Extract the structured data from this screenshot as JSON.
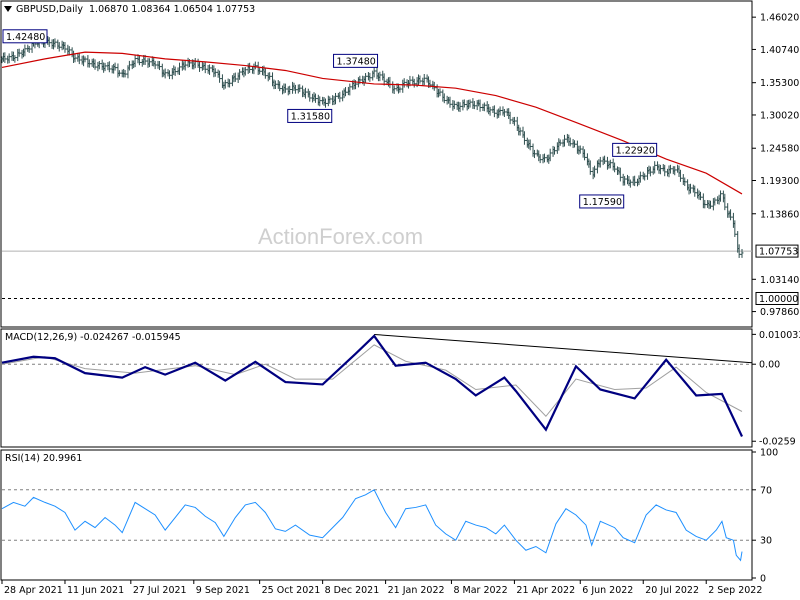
{
  "header": {
    "symbol": "GBPUSD,Daily",
    "ohlc": "1.06870 1.08364 1.06504 1.07753"
  },
  "watermark": "ActionForex.com",
  "colors": {
    "candle": "#2f4f4f",
    "ma": "#cc0000",
    "macd": "#000080",
    "signal": "#a0a0a0",
    "rsi": "#1e90ff",
    "label_box_border": "#000080"
  },
  "chart_data": [
    {
      "type": "line",
      "panel": "price",
      "title": "GBPUSD,Daily 1.06870 1.08364 1.06504 1.07753",
      "y_ticks": [
        "1.46020",
        "1.40740",
        "1.35300",
        "1.30020",
        "1.24580",
        "1.19300",
        "1.13860",
        "1.03140",
        "0.97860"
      ],
      "ylim": [
        0.955,
        1.485
      ],
      "current_price": "1.07753",
      "reference_level": "1.00000",
      "annotations": [
        {
          "label": "1.42480",
          "x": "2021-05-20",
          "y": 1.4248
        },
        {
          "label": "1.37480",
          "x": "2021-12-31",
          "y": 1.3748
        },
        {
          "label": "1.31580",
          "x": "2021-11-29",
          "y": 1.3158
        },
        {
          "label": "1.22920",
          "x": "2022-07-14",
          "y": 1.2292
        },
        {
          "label": "1.17590",
          "x": "2022-06-14",
          "y": 1.1759
        }
      ],
      "x_labels": [
        "28 Apr 2021",
        "11 Jun 2021",
        "27 Jul 2021",
        "9 Sep 2021",
        "25 Oct 2021",
        "8 Dec 2021",
        "21 Jan 2022",
        "8 Mar 2022",
        "21 Apr 2022",
        "6 Jun 2022",
        "20 Jul 2022",
        "2 Sep 2022"
      ],
      "series": [
        {
          "name": "Close",
          "points": [
            [
              "2021-04-28",
              1.392
            ],
            [
              "2021-05-06",
              1.395
            ],
            [
              "2021-05-14",
              1.405
            ],
            [
              "2021-05-20",
              1.418
            ],
            [
              "2021-05-28",
              1.42
            ],
            [
              "2021-06-04",
              1.416
            ],
            [
              "2021-06-11",
              1.411
            ],
            [
              "2021-06-18",
              1.393
            ],
            [
              "2021-06-25",
              1.389
            ],
            [
              "2021-07-02",
              1.382
            ],
            [
              "2021-07-09",
              1.379
            ],
            [
              "2021-07-16",
              1.376
            ],
            [
              "2021-07-21",
              1.365
            ],
            [
              "2021-07-30",
              1.39
            ],
            [
              "2021-08-06",
              1.388
            ],
            [
              "2021-08-13",
              1.385
            ],
            [
              "2021-08-20",
              1.366
            ],
            [
              "2021-08-27",
              1.372
            ],
            [
              "2021-09-03",
              1.384
            ],
            [
              "2021-09-10",
              1.384
            ],
            [
              "2021-09-17",
              1.377
            ],
            [
              "2021-09-24",
              1.371
            ],
            [
              "2021-09-30",
              1.348
            ],
            [
              "2021-10-08",
              1.362
            ],
            [
              "2021-10-15",
              1.374
            ],
            [
              "2021-10-22",
              1.378
            ],
            [
              "2021-10-29",
              1.368
            ],
            [
              "2021-11-05",
              1.349
            ],
            [
              "2021-11-12",
              1.341
            ],
            [
              "2021-11-19",
              1.345
            ],
            [
              "2021-11-29",
              1.331
            ],
            [
              "2021-12-08",
              1.321
            ],
            [
              "2021-12-15",
              1.325
            ],
            [
              "2021-12-22",
              1.334
            ],
            [
              "2021-12-31",
              1.353
            ],
            [
              "2022-01-07",
              1.36
            ],
            [
              "2022-01-13",
              1.369
            ],
            [
              "2022-01-21",
              1.357
            ],
            [
              "2022-01-28",
              1.34
            ],
            [
              "2022-02-04",
              1.353
            ],
            [
              "2022-02-11",
              1.355
            ],
            [
              "2022-02-18",
              1.359
            ],
            [
              "2022-02-25",
              1.341
            ],
            [
              "2022-03-04",
              1.325
            ],
            [
              "2022-03-11",
              1.313
            ],
            [
              "2022-03-18",
              1.318
            ],
            [
              "2022-03-25",
              1.318
            ],
            [
              "2022-04-01",
              1.312
            ],
            [
              "2022-04-08",
              1.303
            ],
            [
              "2022-04-14",
              1.307
            ],
            [
              "2022-04-22",
              1.284
            ],
            [
              "2022-04-29",
              1.257
            ],
            [
              "2022-05-06",
              1.234
            ],
            [
              "2022-05-13",
              1.226
            ],
            [
              "2022-05-20",
              1.248
            ],
            [
              "2022-05-27",
              1.262
            ],
            [
              "2022-06-03",
              1.248
            ],
            [
              "2022-06-10",
              1.232
            ],
            [
              "2022-06-14",
              1.201
            ],
            [
              "2022-06-20",
              1.227
            ],
            [
              "2022-06-30",
              1.215
            ],
            [
              "2022-07-06",
              1.193
            ],
            [
              "2022-07-14",
              1.19
            ],
            [
              "2022-07-22",
              1.205
            ],
            [
              "2022-07-29",
              1.216
            ],
            [
              "2022-08-05",
              1.207
            ],
            [
              "2022-08-12",
              1.213
            ],
            [
              "2022-08-19",
              1.183
            ],
            [
              "2022-08-26",
              1.174
            ],
            [
              "2022-09-02",
              1.151
            ],
            [
              "2022-09-09",
              1.159
            ],
            [
              "2022-09-13",
              1.172
            ],
            [
              "2022-09-16",
              1.143
            ],
            [
              "2022-09-21",
              1.126
            ],
            [
              "2022-09-23",
              1.083
            ],
            [
              "2022-09-26",
              1.069
            ],
            [
              "2022-09-27",
              1.0775
            ]
          ]
        },
        {
          "name": "Moving Average",
          "points": [
            [
              "2021-04-28",
              1.378
            ],
            [
              "2021-05-28",
              1.392
            ],
            [
              "2021-06-25",
              1.403
            ],
            [
              "2021-07-21",
              1.401
            ],
            [
              "2021-08-20",
              1.392
            ],
            [
              "2021-09-17",
              1.387
            ],
            [
              "2021-10-15",
              1.381
            ],
            [
              "2021-11-12",
              1.373
            ],
            [
              "2021-12-08",
              1.36
            ],
            [
              "2022-01-13",
              1.351
            ],
            [
              "2022-02-11",
              1.349
            ],
            [
              "2022-03-11",
              1.344
            ],
            [
              "2022-04-08",
              1.332
            ],
            [
              "2022-05-06",
              1.313
            ],
            [
              "2022-06-03",
              1.288
            ],
            [
              "2022-07-06",
              1.258
            ],
            [
              "2022-08-05",
              1.228
            ],
            [
              "2022-09-02",
              1.205
            ],
            [
              "2022-09-27",
              1.171
            ]
          ]
        }
      ]
    },
    {
      "type": "line",
      "panel": "macd",
      "title": "MACD(12,26,9) -0.024267 -0.015945",
      "y_ticks": [
        "0.010033",
        "0.00",
        "-0.0259"
      ],
      "ylim": [
        -0.0275,
        0.0115
      ],
      "series": [
        {
          "name": "MACD",
          "points": [
            [
              "2021-04-28",
              0.0005
            ],
            [
              "2021-05-20",
              0.0025
            ],
            [
              "2021-06-04",
              0.002
            ],
            [
              "2021-06-25",
              -0.003
            ],
            [
              "2021-07-21",
              -0.0045
            ],
            [
              "2021-08-06",
              -0.001
            ],
            [
              "2021-08-20",
              -0.0035
            ],
            [
              "2021-09-10",
              0.0005
            ],
            [
              "2021-10-01",
              -0.0055
            ],
            [
              "2021-10-22",
              0.0008
            ],
            [
              "2021-11-12",
              -0.006
            ],
            [
              "2021-12-08",
              -0.0068
            ],
            [
              "2021-12-31",
              0.0035
            ],
            [
              "2022-01-13",
              0.0095
            ],
            [
              "2022-01-28",
              -0.0005
            ],
            [
              "2022-02-18",
              0.0005
            ],
            [
              "2022-03-11",
              -0.005
            ],
            [
              "2022-03-25",
              -0.0105
            ],
            [
              "2022-04-14",
              -0.0045
            ],
            [
              "2022-04-22",
              -0.009
            ],
            [
              "2022-05-13",
              -0.022
            ],
            [
              "2022-06-03",
              -0.0007
            ],
            [
              "2022-06-20",
              -0.0085
            ],
            [
              "2022-07-14",
              -0.0115
            ],
            [
              "2022-08-05",
              0.0015
            ],
            [
              "2022-08-26",
              -0.0105
            ],
            [
              "2022-09-13",
              -0.01
            ],
            [
              "2022-09-27",
              -0.0243
            ]
          ]
        },
        {
          "name": "Signal",
          "points": [
            [
              "2021-04-28",
              0.0
            ],
            [
              "2021-05-28",
              0.0025
            ],
            [
              "2021-06-25",
              -0.0015
            ],
            [
              "2021-07-30",
              -0.003
            ],
            [
              "2021-09-10",
              -0.0005
            ],
            [
              "2021-10-08",
              -0.0035
            ],
            [
              "2021-10-29",
              0.0
            ],
            [
              "2021-11-19",
              -0.005
            ],
            [
              "2021-12-15",
              -0.005
            ],
            [
              "2022-01-13",
              0.0065
            ],
            [
              "2022-02-04",
              0.001
            ],
            [
              "2022-03-04",
              -0.002
            ],
            [
              "2022-03-25",
              -0.0085
            ],
            [
              "2022-04-22",
              -0.007
            ],
            [
              "2022-05-13",
              -0.0175
            ],
            [
              "2022-06-03",
              -0.005
            ],
            [
              "2022-06-30",
              -0.0085
            ],
            [
              "2022-07-22",
              -0.008
            ],
            [
              "2022-08-12",
              -0.001
            ],
            [
              "2022-09-02",
              -0.0095
            ],
            [
              "2022-09-27",
              -0.0159
            ]
          ]
        }
      ],
      "trendline": [
        [
          "2022-01-13",
          0.01
        ],
        [
          "2022-09-27",
          0.0005
        ]
      ]
    },
    {
      "type": "line",
      "panel": "rsi",
      "title": "RSI(14) 20.9961",
      "y_ticks": [
        "100",
        "70",
        "30",
        "0"
      ],
      "ylim": [
        0,
        100
      ],
      "series": [
        {
          "name": "RSI(14)",
          "points": [
            [
              "2021-04-28",
              55
            ],
            [
              "2021-05-06",
              60
            ],
            [
              "2021-05-14",
              57
            ],
            [
              "2021-05-20",
              64
            ],
            [
              "2021-05-28",
              60
            ],
            [
              "2021-06-04",
              57
            ],
            [
              "2021-06-11",
              52
            ],
            [
              "2021-06-18",
              38
            ],
            [
              "2021-06-25",
              45
            ],
            [
              "2021-07-02",
              40
            ],
            [
              "2021-07-09",
              48
            ],
            [
              "2021-07-16",
              42
            ],
            [
              "2021-07-21",
              36
            ],
            [
              "2021-07-30",
              60
            ],
            [
              "2021-08-06",
              55
            ],
            [
              "2021-08-13",
              50
            ],
            [
              "2021-08-20",
              38
            ],
            [
              "2021-08-27",
              48
            ],
            [
              "2021-09-03",
              58
            ],
            [
              "2021-09-10",
              56
            ],
            [
              "2021-09-17",
              49
            ],
            [
              "2021-09-24",
              44
            ],
            [
              "2021-09-30",
              33
            ],
            [
              "2021-10-08",
              48
            ],
            [
              "2021-10-15",
              58
            ],
            [
              "2021-10-22",
              60
            ],
            [
              "2021-10-29",
              52
            ],
            [
              "2021-11-05",
              39
            ],
            [
              "2021-11-12",
              37
            ],
            [
              "2021-11-19",
              42
            ],
            [
              "2021-11-29",
              34
            ],
            [
              "2021-12-08",
              32
            ],
            [
              "2021-12-15",
              40
            ],
            [
              "2021-12-22",
              48
            ],
            [
              "2021-12-31",
              63
            ],
            [
              "2022-01-07",
              66
            ],
            [
              "2022-01-13",
              70
            ],
            [
              "2022-01-21",
              52
            ],
            [
              "2022-01-28",
              40
            ],
            [
              "2022-02-04",
              55
            ],
            [
              "2022-02-11",
              56
            ],
            [
              "2022-02-18",
              58
            ],
            [
              "2022-02-25",
              42
            ],
            [
              "2022-03-04",
              35
            ],
            [
              "2022-03-11",
              30
            ],
            [
              "2022-03-18",
              45
            ],
            [
              "2022-03-25",
              42
            ],
            [
              "2022-04-01",
              40
            ],
            [
              "2022-04-08",
              35
            ],
            [
              "2022-04-14",
              42
            ],
            [
              "2022-04-22",
              30
            ],
            [
              "2022-04-29",
              22
            ],
            [
              "2022-05-06",
              25
            ],
            [
              "2022-05-13",
              20
            ],
            [
              "2022-05-20",
              43
            ],
            [
              "2022-05-27",
              55
            ],
            [
              "2022-06-03",
              50
            ],
            [
              "2022-06-10",
              42
            ],
            [
              "2022-06-14",
              26
            ],
            [
              "2022-06-20",
              45
            ],
            [
              "2022-06-30",
              40
            ],
            [
              "2022-07-06",
              32
            ],
            [
              "2022-07-14",
              28
            ],
            [
              "2022-07-22",
              50
            ],
            [
              "2022-07-29",
              58
            ],
            [
              "2022-08-05",
              54
            ],
            [
              "2022-08-12",
              52
            ],
            [
              "2022-08-19",
              38
            ],
            [
              "2022-08-26",
              33
            ],
            [
              "2022-09-02",
              30
            ],
            [
              "2022-09-09",
              38
            ],
            [
              "2022-09-13",
              45
            ],
            [
              "2022-09-16",
              32
            ],
            [
              "2022-09-21",
              30
            ],
            [
              "2022-09-23",
              18
            ],
            [
              "2022-09-26",
              14
            ],
            [
              "2022-09-27",
              21
            ]
          ]
        }
      ],
      "levels": [
        70,
        30
      ]
    }
  ]
}
